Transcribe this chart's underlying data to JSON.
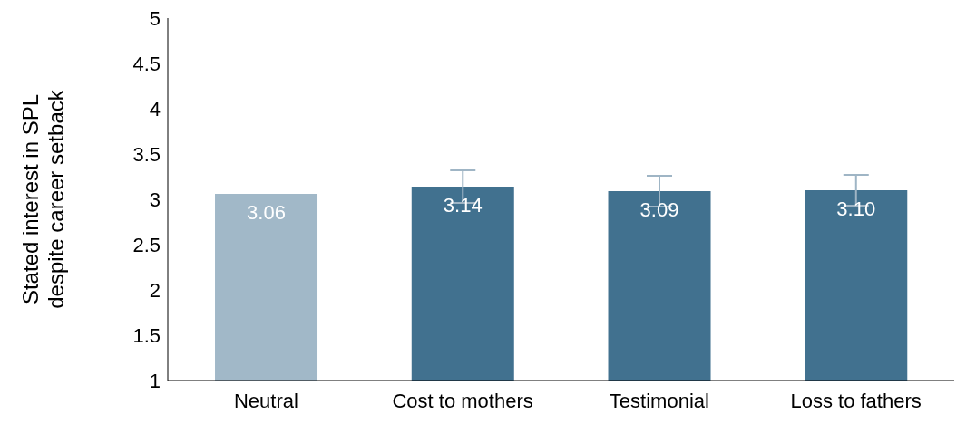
{
  "chart_data": {
    "type": "bar",
    "ylabel": "Stated interest in SPL\ndespite career setback",
    "categories": [
      "Neutral",
      "Cost to mothers",
      "Testimonial",
      "Loss to fathers"
    ],
    "values": [
      3.06,
      3.14,
      3.09,
      3.1
    ],
    "colors": [
      "#a1b8c8",
      "#41718f",
      "#41718f",
      "#41718f"
    ],
    "errors": [
      null,
      0.18,
      0.17,
      0.17
    ],
    "value_labels": [
      "3.06",
      "3.14",
      "3.09",
      "3.10"
    ],
    "ylim": [
      1,
      5
    ],
    "yticks": [
      1,
      1.5,
      2,
      2.5,
      3,
      3.5,
      4,
      4.5,
      5
    ],
    "grid": false
  }
}
